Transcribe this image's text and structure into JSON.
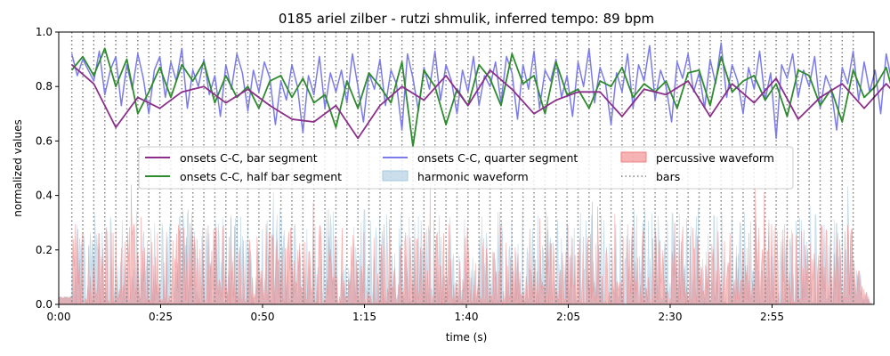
{
  "chart_data": {
    "type": "line",
    "title": "0185 ariel zilber - rutzi shmulik, inferred tempo: 89 bpm",
    "xlabel": "time (s)",
    "ylabel": "normalized values",
    "xlim": [
      0,
      200
    ],
    "ylim": [
      0.0,
      1.0
    ],
    "x_ticks": [
      0,
      25,
      50,
      75,
      100,
      125,
      150,
      175
    ],
    "x_tick_labels": [
      "0:00",
      "0:25",
      "0:50",
      "1:15",
      "1:40",
      "2:05",
      "2:30",
      "2:55"
    ],
    "y_ticks": [
      0.0,
      0.2,
      0.4,
      0.6,
      0.8,
      1.0
    ],
    "y_tick_labels": [
      "0.0",
      "0.2",
      "0.4",
      "0.6",
      "0.8",
      "1.0"
    ],
    "grid": false,
    "legend_placement": "center",
    "legend_columns": 3,
    "bars": {
      "name": "bars",
      "start": 3.2,
      "end": 194.9,
      "count": 72,
      "color": "#808080"
    },
    "series": [
      {
        "name": "onsets C-C, bar segment",
        "kind": "line",
        "color": "#8b2f8b",
        "x_start": 3.2,
        "x_step": 5.4,
        "values": [
          0.88,
          0.81,
          0.65,
          0.76,
          0.72,
          0.78,
          0.8,
          0.74,
          0.79,
          0.73,
          0.68,
          0.67,
          0.73,
          0.61,
          0.73,
          0.8,
          0.75,
          0.84,
          0.73,
          0.86,
          0.79,
          0.7,
          0.75,
          0.78,
          0.78,
          0.69,
          0.79,
          0.77,
          0.82,
          0.69,
          0.81,
          0.74,
          0.83,
          0.68,
          0.76,
          0.81,
          0.72,
          0.81,
          0.72,
          0.8,
          0.75,
          0.83,
          0.77,
          0.7,
          0.82,
          0.86,
          0.8,
          0.73,
          0.82,
          0.85,
          0.77,
          0.81,
          0.74,
          0.84,
          0.76,
          0.81,
          0.84,
          0.66,
          0.74,
          0.84,
          0.7,
          0.76,
          0.72,
          0.81,
          0.69,
          0.78,
          0.85,
          0.79,
          0.74,
          0.83,
          0.78,
          0.86
        ]
      },
      {
        "name": "onsets C-C, half bar segment",
        "kind": "line",
        "color": "#2e8b2e",
        "x_start": 3.2,
        "x_step": 2.7,
        "values": [
          0.86,
          0.91,
          0.84,
          0.94,
          0.8,
          0.9,
          0.7,
          0.78,
          0.87,
          0.76,
          0.88,
          0.82,
          0.89,
          0.74,
          0.84,
          0.76,
          0.8,
          0.72,
          0.82,
          0.84,
          0.76,
          0.83,
          0.74,
          0.77,
          0.65,
          0.82,
          0.72,
          0.85,
          0.8,
          0.74,
          0.89,
          0.58,
          0.86,
          0.8,
          0.66,
          0.79,
          0.73,
          0.88,
          0.83,
          0.73,
          0.92,
          0.81,
          0.84,
          0.7,
          0.89,
          0.77,
          0.79,
          0.72,
          0.82,
          0.8,
          0.87,
          0.76,
          0.81,
          0.78,
          0.82,
          0.72,
          0.85,
          0.86,
          0.73,
          0.91,
          0.78,
          0.82,
          0.84,
          0.75,
          0.81,
          0.69,
          0.86,
          0.84,
          0.73,
          0.79,
          0.67,
          0.86,
          0.76,
          0.8,
          0.87,
          0.72,
          0.85,
          0.81,
          0.68,
          0.86,
          0.79,
          0.9,
          0.74,
          0.8,
          0.72,
          0.87,
          0.78,
          0.85,
          0.66,
          0.83,
          0.79,
          0.85,
          0.7,
          0.84,
          0.76,
          0.8,
          0.88,
          0.75,
          0.83,
          0.77,
          0.71,
          0.84,
          0.76,
          0.8,
          0.7,
          0.79,
          0.82,
          0.71,
          0.82,
          0.78,
          0.76,
          0.73,
          0.81,
          0.86,
          0.74,
          0.82,
          0.73,
          0.86,
          0.7,
          0.8,
          0.68,
          0.78,
          0.75,
          0.88,
          0.72,
          0.79,
          0.84,
          0.75,
          0.63,
          0.86,
          0.79,
          0.82,
          0.9,
          0.82,
          0.76,
          0.84,
          0.88,
          0.8,
          0.91,
          0.87,
          0.82,
          0.78
        ]
      },
      {
        "name": "onsets C-C, quarter segment",
        "kind": "line",
        "color": "#7b7bea",
        "x_start": 3.2,
        "x_step": 1.35,
        "values": [
          0.92,
          0.84,
          0.9,
          0.86,
          0.82,
          0.93,
          0.77,
          0.86,
          0.91,
          0.73,
          0.88,
          0.79,
          0.92,
          0.83,
          0.7,
          0.86,
          0.91,
          0.76,
          0.89,
          0.82,
          0.94,
          0.72,
          0.86,
          0.8,
          0.9,
          0.77,
          0.84,
          0.69,
          0.88,
          0.79,
          0.92,
          0.85,
          0.71,
          0.86,
          0.78,
          0.89,
          0.83,
          0.66,
          0.82,
          0.75,
          0.88,
          0.8,
          0.63,
          0.84,
          0.77,
          0.91,
          0.72,
          0.85,
          0.78,
          0.86,
          0.74,
          0.92,
          0.8,
          0.67,
          0.85,
          0.79,
          0.9,
          0.73,
          0.86,
          0.81,
          0.64,
          0.92,
          0.83,
          0.71,
          0.87,
          0.79,
          0.93,
          0.75,
          0.88,
          0.82,
          0.7,
          0.86,
          0.78,
          0.91,
          0.73,
          0.84,
          0.8,
          0.89,
          0.74,
          0.91,
          0.85,
          0.68,
          0.88,
          0.79,
          0.93,
          0.72,
          0.86,
          0.82,
          0.9,
          0.76,
          0.84,
          0.69,
          0.89,
          0.8,
          0.94,
          0.74,
          0.87,
          0.81,
          0.66,
          0.85,
          0.78,
          0.92,
          0.72,
          0.88,
          0.82,
          0.95,
          0.75,
          0.86,
          0.8,
          0.67,
          0.89,
          0.83,
          0.92,
          0.78,
          0.85,
          0.72,
          0.9,
          0.81,
          0.96,
          0.76,
          0.88,
          0.82,
          0.7,
          0.87,
          0.79,
          0.93,
          0.75,
          0.85,
          0.61,
          0.88,
          0.83,
          0.92,
          0.76,
          0.86,
          0.8,
          0.91,
          0.72,
          0.84,
          0.79,
          0.64,
          0.87,
          0.81,
          0.93,
          0.75,
          0.89,
          0.78,
          0.86,
          0.7,
          0.92,
          0.82,
          0.76,
          0.88,
          0.66,
          0.85,
          0.8,
          0.94,
          0.73,
          0.87,
          0.81,
          0.9,
          0.75,
          0.84,
          0.6,
          0.88,
          0.82,
          0.95,
          0.78,
          0.86,
          0.71,
          0.91,
          0.8,
          0.84,
          0.69,
          0.89,
          0.82,
          0.93,
          0.76,
          0.85,
          0.58,
          0.88,
          0.81,
          0.92,
          0.74,
          0.86,
          0.67,
          0.9,
          0.79,
          0.84,
          0.72,
          0.88,
          0.82,
          0.93,
          0.77,
          0.86,
          0.73,
          0.9,
          0.81,
          0.85,
          0.7,
          0.89,
          0.83,
          0.94,
          0.78,
          0.97,
          0.82,
          0.9,
          0.76,
          0.88,
          0.84,
          0.95,
          0.8,
          0.92,
          0.86,
          0.96,
          0.83,
          0.96,
          0.88,
          0.91,
          0.85,
          0.9
        ]
      },
      {
        "name": "harmonic waveform",
        "kind": "area",
        "color": "#a6c8e0",
        "envelope": {
          "start": 0,
          "active_from": 3.2,
          "active_to": 194.9,
          "end": 200,
          "typical_max": 0.35,
          "peak_max": 0.46
        }
      },
      {
        "name": "percussive waveform",
        "kind": "area",
        "color": "#f08080",
        "envelope": {
          "start": 0,
          "active_from": 3.2,
          "active_to": 194.9,
          "end": 200,
          "typical_max": 0.3,
          "peak_max": 0.52
        }
      }
    ]
  }
}
